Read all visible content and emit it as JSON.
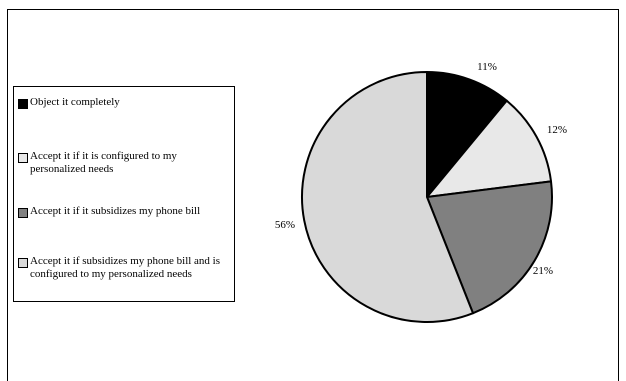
{
  "chart_data": {
    "type": "pie",
    "slices": [
      {
        "name": "Object it completely",
        "value": 11,
        "label": "11%",
        "color": "#000000"
      },
      {
        "name": "Accept it if it is configured to my personalized needs",
        "value": 12,
        "label": "12%",
        "color": "#e8e8e8"
      },
      {
        "name": "Accept it if it subsidizes my phone bill",
        "value": 21,
        "label": "21%",
        "color": "#808080"
      },
      {
        "name": "Accept it if subsidizes my phone bill and is configured to my personalized needs",
        "value": 56,
        "label": "56%",
        "color": "#d9d9d9"
      }
    ],
    "legend_position": "left",
    "start_angle": "top, clockwise"
  }
}
